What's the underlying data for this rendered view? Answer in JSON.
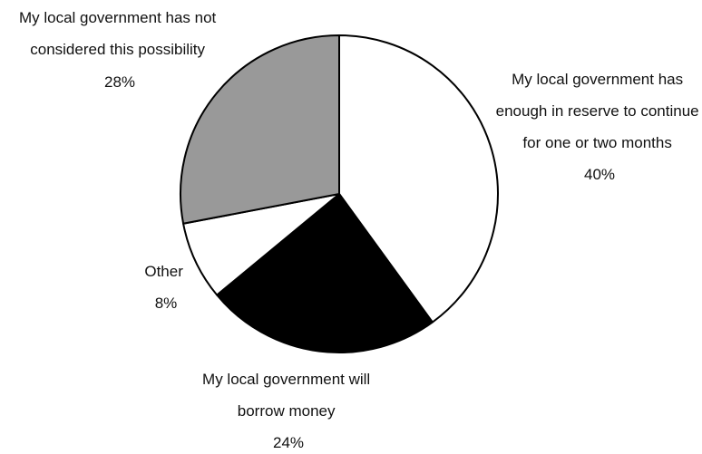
{
  "chart_data": {
    "type": "pie",
    "title": "",
    "start": "12 o'clock",
    "direction": "clockwise",
    "slices": [
      {
        "label_lines": [
          "My local government has",
          "enough in reserve to continue",
          "for one or two months"
        ],
        "value_label": "40%",
        "value": 40,
        "color": "#ffffff"
      },
      {
        "label_lines": [
          "My local government will",
          "borrow money"
        ],
        "value_label": "24%",
        "value": 24,
        "color": "#000000"
      },
      {
        "label_lines": [
          "Other"
        ],
        "value_label": "8%",
        "value": 8,
        "color": "#ffffff"
      },
      {
        "label_lines": [
          "My local government has not",
          "considered this possibility"
        ],
        "value_label": "28%",
        "value": 28,
        "color": "#999999"
      }
    ],
    "stroke_color": "#000000"
  }
}
